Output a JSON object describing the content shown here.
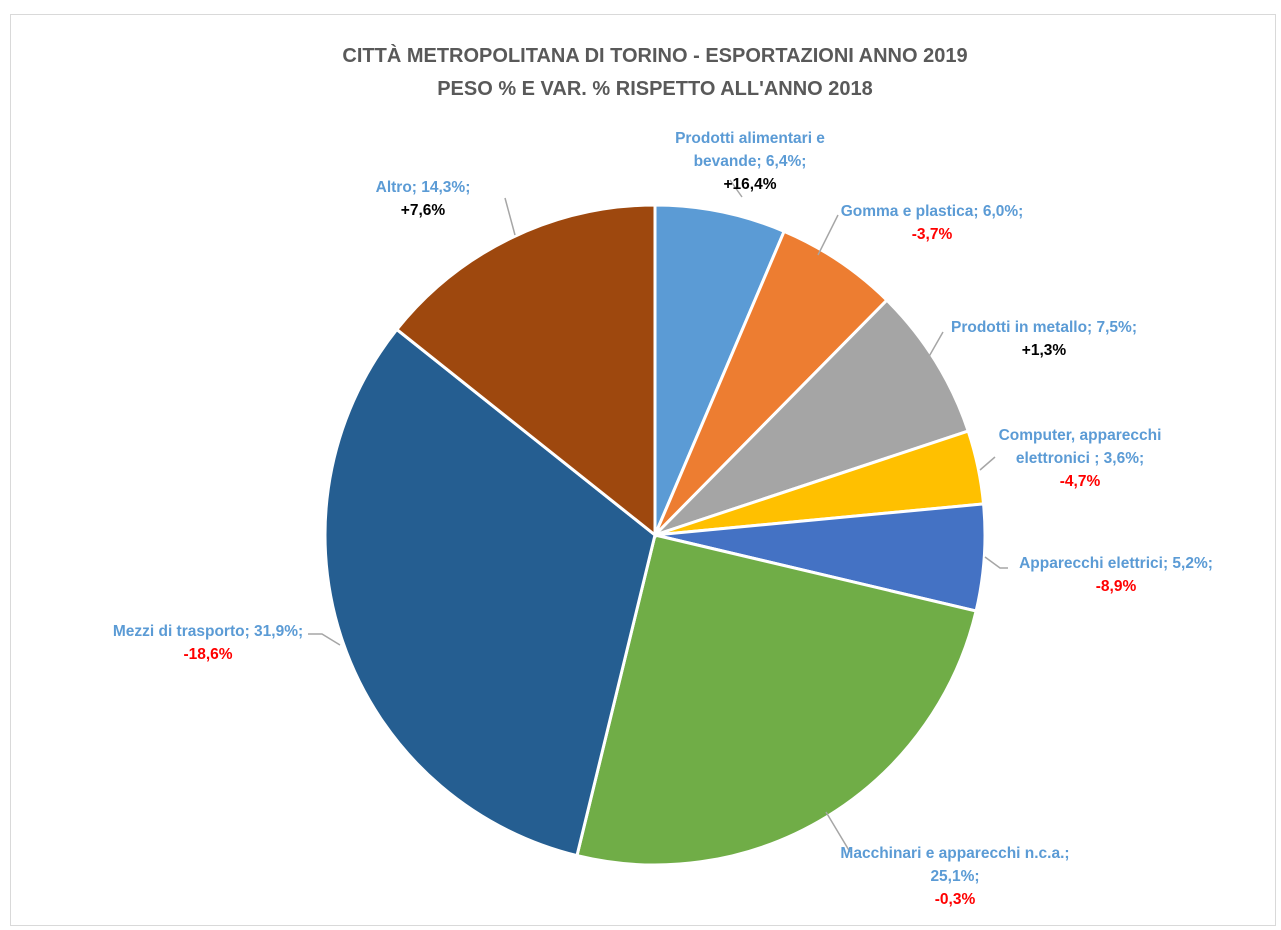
{
  "chart_data": {
    "type": "pie",
    "title": "CITTÀ METROPOLITANA DI TORINO - ESPORTAZIONI ANNO 2019",
    "subtitle": "PESO % E VAR. % RISPETTO ALL'ANNO 2018",
    "slices": [
      {
        "label": "Prodotti alimentari e bevande",
        "value": 6.4,
        "value_label": "6,4%",
        "change": 16.4,
        "change_label": "+16,4%",
        "color": "#5b9bd5",
        "change_color": "#000000"
      },
      {
        "label": "Gomma e plastica",
        "value": 6.0,
        "value_label": "6,0%",
        "change": -3.7,
        "change_label": "-3,7%",
        "color": "#ed7d31",
        "change_color": "#ff0000"
      },
      {
        "label": "Prodotti in metallo",
        "value": 7.5,
        "value_label": "7,5%",
        "change": 1.3,
        "change_label": "+1,3%",
        "color": "#a5a5a5",
        "change_color": "#000000"
      },
      {
        "label": "Computer, apparecchi elettronici",
        "value": 3.6,
        "value_label": "3,6%",
        "change": -4.7,
        "change_label": "-4,7%",
        "color": "#ffc000",
        "change_color": "#ff0000"
      },
      {
        "label": "Apparecchi elettrici",
        "value": 5.2,
        "value_label": "5,2%",
        "change": -8.9,
        "change_label": "-8,9%",
        "color": "#4472c4",
        "change_color": "#ff0000"
      },
      {
        "label": "Macchinari e apparecchi n.c.a.",
        "value": 25.1,
        "value_label": "25,1%",
        "change": -0.3,
        "change_label": "-0,3%",
        "color": "#70ad47",
        "change_color": "#ff0000"
      },
      {
        "label": "Mezzi di trasporto",
        "value": 31.9,
        "value_label": "31,9%",
        "change": -18.6,
        "change_label": "-18,6%",
        "color": "#255e91",
        "change_color": "#ff0000"
      },
      {
        "label": "Altro",
        "value": 14.3,
        "value_label": "14,3%",
        "change": 7.6,
        "change_label": "+7,6%",
        "color": "#9e480e",
        "change_color": "#000000"
      }
    ],
    "label_lines": [
      {
        "name": [
          "Prodotti alimentari e",
          "bevande; 6,4%;"
        ],
        "var": "+16,4%"
      },
      {
        "name": [
          "Gomma e plastica; 6,0%;"
        ],
        "var": "-3,7%"
      },
      {
        "name": [
          "Prodotti in metallo; 7,5%;"
        ],
        "var": "+1,3%"
      },
      {
        "name": [
          "Computer, apparecchi",
          "elettronici ; 3,6%;"
        ],
        "var": "-4,7%"
      },
      {
        "name": [
          "Apparecchi elettrici; 5,2%;"
        ],
        "var": "-8,9%"
      },
      {
        "name": [
          "Macchinari e apparecchi n.c.a.;",
          "25,1%;"
        ],
        "var": "-0,3%"
      },
      {
        "name": [
          "Mezzi di trasporto; 31,9%;"
        ],
        "var": "-18,6%"
      },
      {
        "name": [
          "Altro; 14,3%;"
        ],
        "var": "+7,6%"
      }
    ]
  }
}
